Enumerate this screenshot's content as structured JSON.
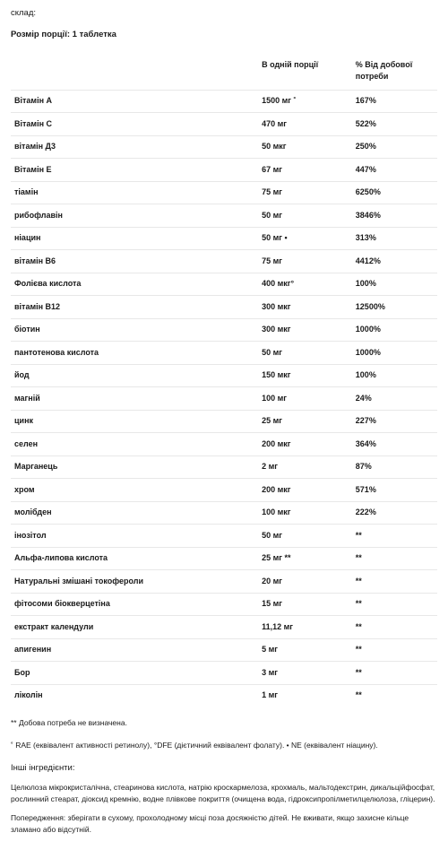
{
  "header": {
    "composition_label": "склад:",
    "serving_label": "Розмір порції: 1 таблетка"
  },
  "table": {
    "columns": [
      "",
      "В одній порції",
      "% Від добової потреби"
    ],
    "rows": [
      [
        "Вітамін А",
        "1500 мг ˚",
        "167%"
      ],
      [
        "Вітамін С",
        "470 мг",
        "522%"
      ],
      [
        "вітамін Д3",
        "50 мкг",
        "250%"
      ],
      [
        "Вітамін Е",
        "67 мг",
        "447%"
      ],
      [
        "тіамін",
        "75 мг",
        "6250%"
      ],
      [
        "рибофлавін",
        "50 мг",
        "3846%"
      ],
      [
        "ніацин",
        "50 мг •",
        "313%"
      ],
      [
        "вітамін В6",
        "75 мг",
        "4412%"
      ],
      [
        "Фолієва кислота",
        "400 мкг°",
        "100%"
      ],
      [
        "вітамін В12",
        "300 мкг",
        "12500%"
      ],
      [
        "біотин",
        "300 мкг",
        "1000%"
      ],
      [
        "пантотенова кислота",
        "50 мг",
        "1000%"
      ],
      [
        "йод",
        "150 мкг",
        "100%"
      ],
      [
        "магній",
        "100 мг",
        "24%"
      ],
      [
        "цинк",
        "25 мг",
        "227%"
      ],
      [
        "селен",
        "200 мкг",
        "364%"
      ],
      [
        "Марганець",
        "2 мг",
        "87%"
      ],
      [
        "хром",
        "200 мкг",
        "571%"
      ],
      [
        "молібден",
        "100 мкг",
        "222%"
      ],
      [
        "інозітол",
        "50 мг",
        "**"
      ],
      [
        "Альфа-липова кислота",
        "25 мг **",
        "**"
      ],
      [
        "Натуральні змішані токофероли",
        "20 мг",
        "**"
      ],
      [
        "фітосоми біокверцетіна",
        "15 мг",
        "**"
      ],
      [
        "екстракт календули",
        "11,12 мг",
        "**"
      ],
      [
        "апигенин",
        "5 мг",
        "**"
      ],
      [
        "Бор",
        "3 мг",
        "**"
      ],
      [
        "ліколін",
        "1 мг",
        "**"
      ]
    ]
  },
  "footnotes": {
    "dv_note": "** Добова потреба не визначена.",
    "rae_note": "˚ RAE (еквівалент активності ретинолу), °DFE (дієтичний еквівалент фолату). • NE (еквівалент ніацину)."
  },
  "other_ingredients": {
    "heading": "Інші інгредієнти:",
    "text": "Целюлоза мікрокристалічна, стеаринова кислота, натрію кроскармелоза, крохмаль, мальтодекстрин, дикальційфосфат, рослинний стеарат, діоксид кремнію, водне плівкове покриття (очищена вода, гідроксипропілметилцелюлоза, гліцерин)."
  },
  "warning": {
    "text": "Попередження: зберігати в сухому, прохолодному місці поза досяжністю дітей. Не вживати, якщо захисне кільце зламано або відсутній."
  },
  "styles": {
    "text_color": "#1a1a1a",
    "border_color": "#e8e8e8",
    "background": "#ffffff"
  }
}
